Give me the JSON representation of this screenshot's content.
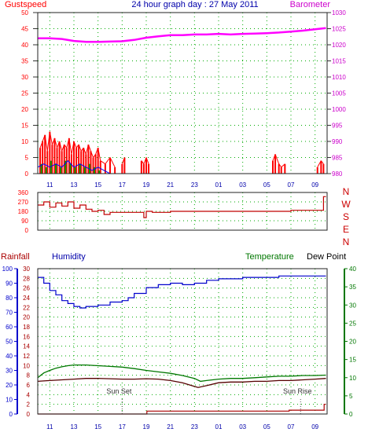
{
  "header": {
    "left_label": "Gustspeed",
    "title": "24 hour graph day : 27 May 2011",
    "right_label": "Barometer"
  },
  "colors": {
    "gust": "#ff0000",
    "wind_green": "#00a000",
    "wind_blue": "#0000ff",
    "barometer": "#ff00ff",
    "direction": "#c00000",
    "humidity": "#0000cc",
    "temperature": "#007700",
    "dewpoint": "#550000",
    "rainfall": "#aa0000",
    "grid": "#00aa00",
    "gust_axis_text": "#ff0000",
    "baro_axis_text": "#cc00cc",
    "rain_axis_text": "#0000cc",
    "temp_axis_text": "#007700"
  },
  "chart_data": [
    {
      "type": "line",
      "panel": "wind-barometer",
      "title": "24 hour graph day : 27 May 2011",
      "x_tick_labels": [
        "11",
        "13",
        "15",
        "17",
        "19",
        "21",
        "23",
        "01",
        "03",
        "05",
        "07",
        "09"
      ],
      "x_start_hour": 10,
      "y_left_label": "Gustspeed",
      "y_left_ticks": [
        "0",
        "5",
        "10",
        "15",
        "20",
        "25",
        "30",
        "35",
        "40",
        "45",
        "50"
      ],
      "ylim_left": [
        0,
        50
      ],
      "y_right_label": "Barometer",
      "y_right_ticks": [
        "980",
        "985",
        "990",
        "995",
        "1000",
        "1005",
        "1010",
        "1015",
        "1020",
        "1025",
        "1030"
      ],
      "ylim_right": [
        980,
        1030
      ],
      "grid": true,
      "series": [
        {
          "name": "Barometer",
          "axis": "right",
          "x": [
            10,
            11,
            12,
            13,
            14,
            15,
            16,
            17,
            18,
            19,
            20,
            21,
            22,
            23,
            24,
            25,
            26,
            27,
            28,
            29,
            30,
            31,
            32,
            33,
            33.9
          ],
          "values": [
            1022,
            1022,
            1021.8,
            1021.2,
            1020.9,
            1020.9,
            1021,
            1021.1,
            1021.5,
            1022.2,
            1022.6,
            1023,
            1023,
            1023.2,
            1023.2,
            1023.4,
            1023.2,
            1023.4,
            1023.5,
            1023.6,
            1023.8,
            1024.1,
            1024.4,
            1024.8,
            1025.2
          ]
        },
        {
          "name": "Gust",
          "axis": "left",
          "style": "spikes",
          "x": [
            10.2,
            10.4,
            10.6,
            10.8,
            11.0,
            11.2,
            11.4,
            11.6,
            11.8,
            12.0,
            12.2,
            12.4,
            12.6,
            12.8,
            13.0,
            13.2,
            13.4,
            13.6,
            13.8,
            14.0,
            14.2,
            14.4,
            14.6,
            14.8,
            15.0,
            15.2,
            15.6,
            16.0,
            16.4,
            17.0,
            17.2,
            18.6,
            18.8,
            19.0,
            19.2,
            29.5,
            29.7,
            30.0,
            30.2,
            30.5,
            33.2,
            33.5,
            33.7
          ],
          "values": [
            8,
            10,
            12,
            7,
            13,
            9,
            11,
            8,
            10,
            7,
            9,
            8,
            11,
            6,
            10,
            8,
            9,
            7,
            8,
            6,
            9,
            7,
            5,
            6,
            8,
            4,
            3,
            5,
            2,
            3,
            5,
            4,
            3,
            5,
            3,
            4,
            6,
            3,
            2,
            3,
            2,
            4,
            3
          ]
        },
        {
          "name": "Wind speed",
          "axis": "left",
          "style": "spikes",
          "x": [
            10.3,
            10.7,
            11.1,
            11.5,
            11.9,
            12.3,
            12.7,
            13.1,
            13.5,
            13.9,
            14.3,
            14.7,
            15.1
          ],
          "values": [
            3,
            2,
            4,
            3,
            2,
            4,
            3,
            2,
            3,
            2,
            3,
            2,
            1
          ]
        },
        {
          "name": "Wind average",
          "axis": "left",
          "x": [
            10,
            10.5,
            11,
            11.5,
            12,
            12.5,
            13,
            13.5,
            14,
            14.5,
            15,
            15.5,
            16
          ],
          "values": [
            2,
            3,
            2,
            3,
            2,
            4,
            2,
            3,
            2,
            1,
            2,
            1,
            0
          ]
        }
      ]
    },
    {
      "type": "line",
      "panel": "wind-direction",
      "y_left_ticks": [
        "0",
        "90",
        "180",
        "270",
        "360"
      ],
      "ylim": [
        0,
        360
      ],
      "y_right_labels": [
        "N",
        "W",
        "S",
        "E",
        "N"
      ],
      "grid": true,
      "series": [
        {
          "name": "Direction",
          "x": [
            10,
            10.5,
            11,
            11.5,
            12,
            12.5,
            13,
            13.5,
            14,
            14.5,
            15,
            15.5,
            16,
            17,
            18,
            18.8,
            19,
            19.5,
            21,
            23,
            25,
            27,
            29,
            31,
            32,
            33,
            33.5,
            33.7,
            33.9
          ],
          "values": [
            240,
            270,
            220,
            260,
            230,
            270,
            210,
            240,
            200,
            180,
            190,
            150,
            170,
            170,
            170,
            120,
            180,
            170,
            180,
            180,
            180,
            180,
            180,
            190,
            190,
            190,
            190,
            320,
            320
          ]
        }
      ]
    },
    {
      "type": "line",
      "panel": "temperature-humidity",
      "label_rainfall": "Rainfall",
      "label_humidity": "Humidity",
      "label_temperature": "Temperature",
      "label_dewpoint": "Dew Point",
      "annotations": [
        "Sun Set",
        "Sun Rise"
      ],
      "x_tick_labels": [
        "11",
        "13",
        "15",
        "17",
        "19",
        "21",
        "23",
        "01",
        "03",
        "05",
        "07",
        "09"
      ],
      "y_humidity_ticks": [
        "0",
        "10",
        "20",
        "30",
        "40",
        "50",
        "60",
        "70",
        "80",
        "90",
        "100"
      ],
      "ylim_humidity": [
        0,
        100
      ],
      "y_rain_ticks": [
        "0",
        "2",
        "4",
        "6",
        "8",
        "10",
        "12",
        "14",
        "16",
        "18",
        "20",
        "22",
        "24",
        "26",
        "28",
        "30"
      ],
      "ylim_rain": [
        0,
        30
      ],
      "y_temp_ticks": [
        "0",
        "5",
        "10",
        "15",
        "20",
        "25",
        "30",
        "35",
        "40"
      ],
      "ylim_temp": [
        0,
        40
      ],
      "grid": true,
      "series": [
        {
          "name": "Humidity",
          "axis": "humidity",
          "x": [
            10,
            10.5,
            11,
            11.5,
            12,
            12.5,
            13,
            13.5,
            14,
            15,
            16,
            17,
            17.5,
            18,
            19,
            20,
            21,
            22,
            23,
            24,
            25,
            26,
            27,
            28,
            29,
            30,
            31,
            32,
            33,
            33.9
          ],
          "values": [
            94,
            90,
            85,
            82,
            78,
            76,
            74,
            73,
            74,
            75,
            77,
            78,
            80,
            83,
            87,
            89,
            90,
            89,
            90,
            92,
            93,
            93,
            94,
            94,
            94,
            95,
            95,
            95,
            95,
            95
          ]
        },
        {
          "name": "Temperature",
          "axis": "temp",
          "x": [
            10,
            10.5,
            11,
            11.5,
            12,
            12.5,
            13,
            14,
            15,
            16,
            17,
            18,
            19,
            20,
            21,
            22,
            23,
            23.5,
            24,
            25,
            26,
            27,
            28,
            29,
            30,
            31,
            32,
            33,
            33.9
          ],
          "values": [
            10,
            11.3,
            12,
            12.6,
            13,
            13.3,
            13.5,
            13.5,
            13.3,
            13.1,
            12.9,
            12.5,
            12,
            11.6,
            11.2,
            10.6,
            9.8,
            9,
            9.2,
            9.6,
            9.8,
            9.8,
            10,
            10.2,
            10.4,
            10.4,
            10.6,
            10.6,
            10.7
          ]
        },
        {
          "name": "Dew Point",
          "axis": "temp",
          "x": [
            10,
            11,
            12,
            13,
            14,
            15,
            16,
            17,
            18,
            19,
            20,
            21,
            22,
            23,
            23.3,
            24,
            25,
            26,
            27,
            28,
            29,
            30,
            31,
            32,
            33,
            33.9
          ],
          "values": [
            9,
            9.2,
            9.4,
            9.6,
            9.8,
            9.8,
            9.7,
            9.6,
            9.6,
            9.7,
            9.6,
            9.2,
            8.6,
            7.6,
            7.3,
            7.8,
            8.6,
            8.8,
            8.8,
            9,
            9,
            9.2,
            9.2,
            9.4,
            9.6,
            9.8
          ]
        },
        {
          "name": "Rainfall",
          "axis": "rain",
          "x": [
            10,
            19,
            19.05,
            30.8,
            30.85,
            33.7,
            33.75,
            33.9
          ],
          "values": [
            0,
            0,
            0.6,
            0.6,
            0.8,
            0.8,
            2.0,
            2.0
          ]
        }
      ]
    }
  ]
}
